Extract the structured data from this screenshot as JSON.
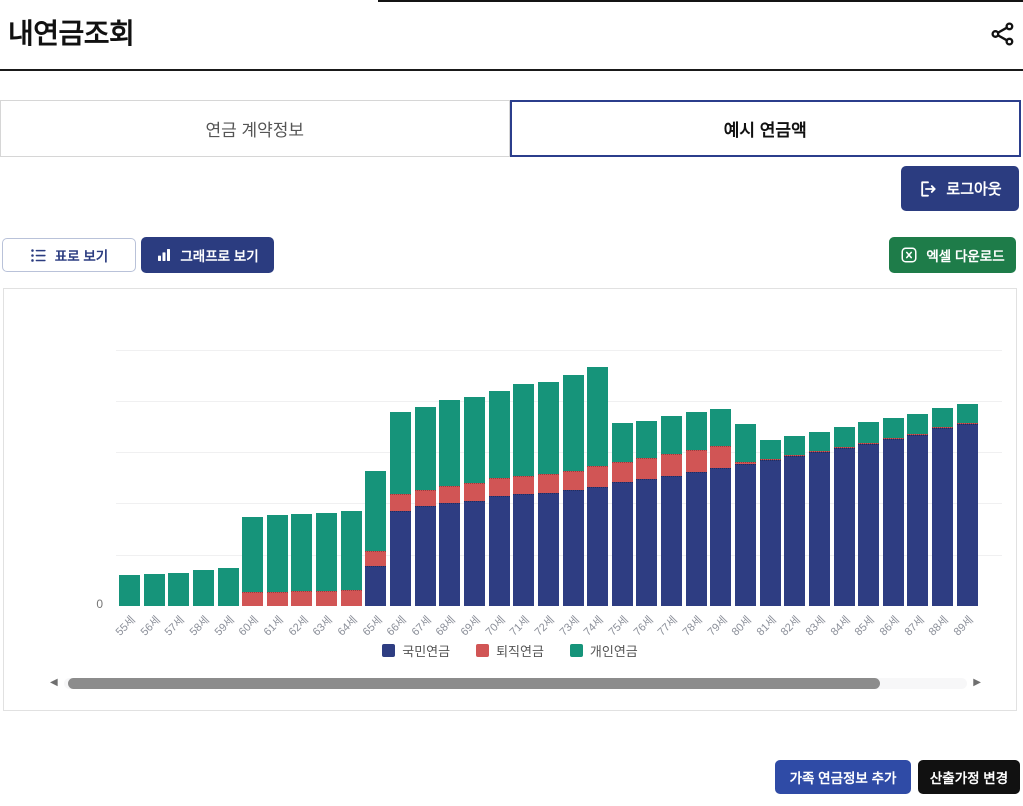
{
  "page": {
    "title": "내연금조회"
  },
  "tabs": [
    {
      "label": "연금 계약정보",
      "active": false
    },
    {
      "label": "예시 연금액",
      "active": true
    }
  ],
  "toolbar": {
    "logout_label": "로그아웃",
    "table_view_label": "표로 보기",
    "graph_view_label": "그래프로 보기",
    "excel_label": "엑셀 다운로드"
  },
  "footer": {
    "add_family_label": "가족 연금정보 추가",
    "change_assumption_label": "산출가정 변경"
  },
  "icons": {
    "share": "share-nodes",
    "logout": "exit-arrow",
    "table_view": "list",
    "graph_view": "bar-chart",
    "excel": "x-square",
    "scroll_left": "◀",
    "scroll_right": "▶"
  },
  "colors": {
    "navy_button": "#2b3c80",
    "tab_active_border": "#2b3e8c",
    "excel_green": "#1e7c49",
    "family_blue": "#2f4ba6",
    "black_button": "#111111",
    "bar_national": "#2e3d82",
    "bar_retirement": "#d15555",
    "bar_personal": "#16947a"
  },
  "chart_data": {
    "type": "bar",
    "stacked": true,
    "title": "",
    "xlabel": "",
    "ylabel": "",
    "y_tick_labels": [
      "0"
    ],
    "ylim": [
      0,
      310
    ],
    "gridline_step": 50,
    "grid": true,
    "legend_position": "bottom",
    "x_label_rotation": -45,
    "categories": [
      "55세",
      "56세",
      "57세",
      "58세",
      "59세",
      "60세",
      "61세",
      "62세",
      "63세",
      "64세",
      "65세",
      "66세",
      "67세",
      "68세",
      "69세",
      "70세",
      "71세",
      "72세",
      "73세",
      "74세",
      "75세",
      "76세",
      "77세",
      "78세",
      "79세",
      "80세",
      "81세",
      "82세",
      "83세",
      "84세",
      "85세",
      "86세",
      "87세",
      "88세",
      "89세"
    ],
    "series": [
      {
        "name": "국민연금",
        "slug": "national-pension",
        "color": "#2e3d82",
        "values": [
          0,
          0,
          0,
          0,
          0,
          0,
          0,
          0,
          0,
          0,
          39,
          93,
          97,
          100,
          102,
          107,
          109,
          110,
          113,
          116,
          121,
          124,
          127,
          131,
          134,
          138,
          142,
          146,
          150,
          154,
          158,
          163,
          167,
          173,
          177
        ]
      },
      {
        "name": "퇴직연금",
        "slug": "retirement-pension",
        "color": "#d15555",
        "values": [
          0,
          0,
          0,
          0,
          0,
          14,
          14,
          15,
          15,
          16,
          15,
          16,
          16,
          17,
          18,
          18,
          18,
          19,
          19,
          20,
          19,
          20,
          21,
          21,
          22,
          2,
          1,
          1,
          1,
          1,
          1,
          1,
          1,
          1,
          1
        ]
      },
      {
        "name": "개인연금",
        "slug": "personal-pension",
        "color": "#16947a",
        "values": [
          30,
          31,
          32,
          35,
          37,
          73,
          75,
          75,
          76,
          77,
          78,
          80,
          81,
          84,
          84,
          85,
          89,
          89,
          93,
          97,
          38,
          36,
          37,
          37,
          36,
          37,
          19,
          19,
          19,
          19,
          20,
          19,
          19,
          19,
          19
        ]
      }
    ]
  }
}
